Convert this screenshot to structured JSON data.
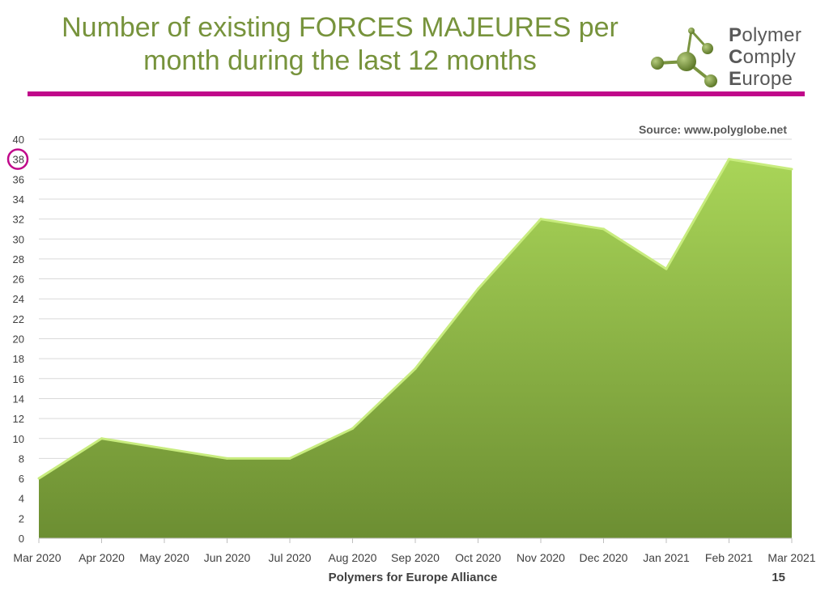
{
  "slide": {
    "title_line1": "Number of existing FORCES MAJEURES per",
    "title_line2": "month during the last 12 months",
    "footer": "Polymers for Europe Alliance",
    "page_number": "15"
  },
  "logo": {
    "line1_initial": "P",
    "line1_rest": "olymer",
    "line2_initial": "C",
    "line2_rest": "omply",
    "line3_initial": "E",
    "line3_rest": "urope"
  },
  "colors": {
    "title": "#77933c",
    "rule": "#c0088a",
    "area_top": "#a9d558",
    "area_bottom": "#6c8e32",
    "highlight_circle": "#c0088a"
  },
  "chart_data": {
    "type": "area",
    "title": "",
    "source": "Source: www.polyglobe.net",
    "categories": [
      "Mar 2020",
      "Apr 2020",
      "May 2020",
      "Jun 2020",
      "Jul 2020",
      "Aug 2020",
      "Sep 2020",
      "Oct 2020",
      "Nov 2020",
      "Dec 2020",
      "Jan 2021",
      "Feb 2021",
      "Mar 2021"
    ],
    "values": [
      6,
      10,
      9,
      8,
      8,
      11,
      17,
      25,
      32,
      31,
      27,
      38,
      37
    ],
    "ylim": [
      0,
      40
    ],
    "yticks": [
      0,
      2,
      4,
      6,
      8,
      10,
      12,
      14,
      16,
      18,
      20,
      22,
      24,
      26,
      28,
      30,
      32,
      34,
      36,
      38,
      40
    ],
    "highlighted_tick": 38,
    "grid": true,
    "xlabel": "",
    "ylabel": ""
  }
}
